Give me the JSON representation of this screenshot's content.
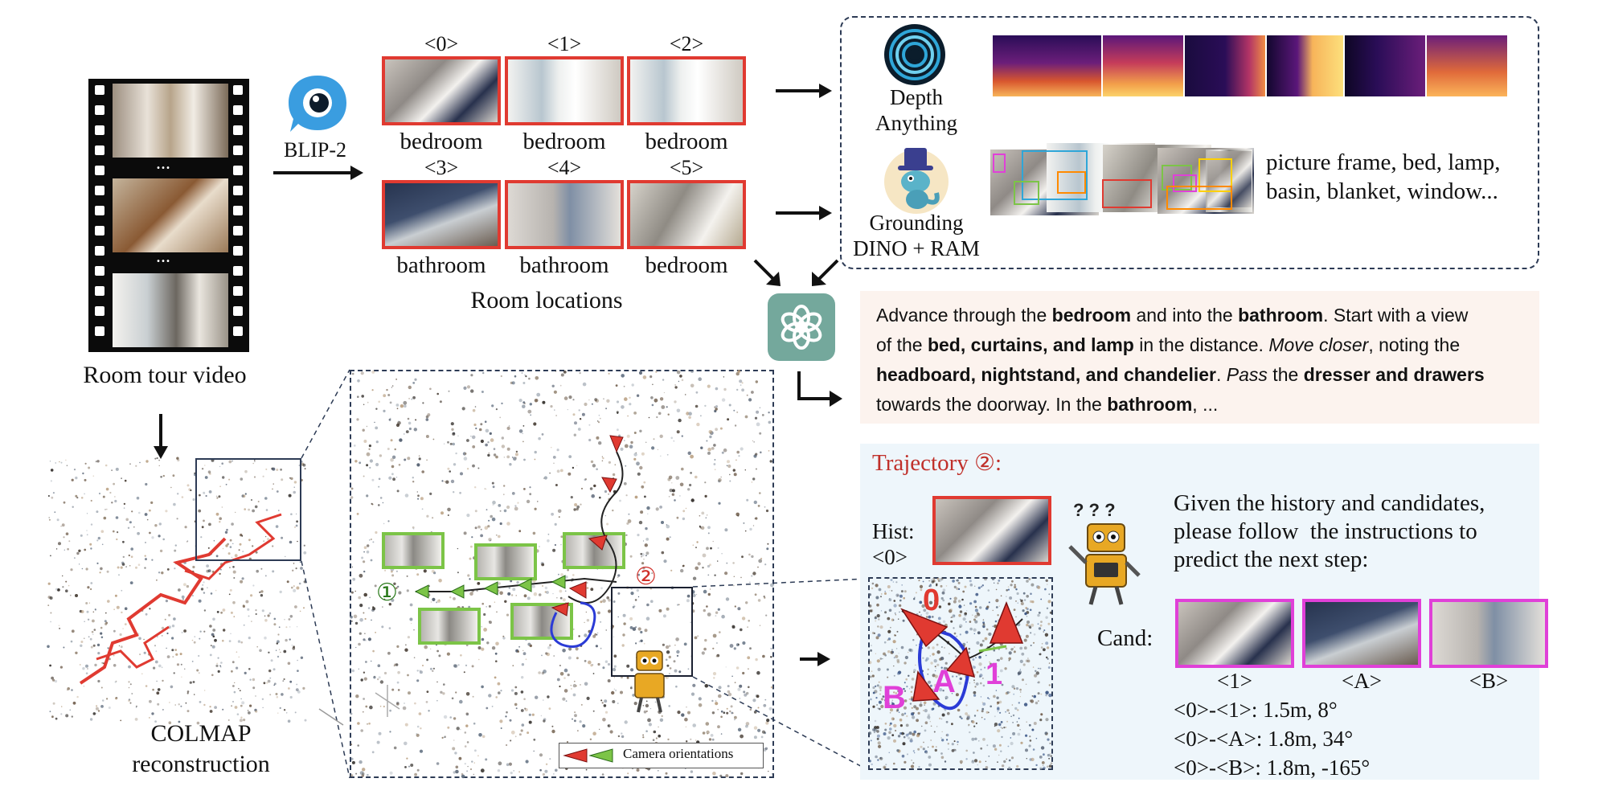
{
  "video": {
    "caption": "Room tour video",
    "ellipsis1": "...",
    "ellipsis2": "..."
  },
  "blip": {
    "label": "BLIP-2",
    "icon": "eye-speech-bubble-icon"
  },
  "rooms": {
    "caption": "Room locations",
    "items": [
      {
        "index": "<0>",
        "label": "bedroom"
      },
      {
        "index": "<1>",
        "label": "bedroom"
      },
      {
        "index": "<2>",
        "label": "bedroom"
      },
      {
        "index": "<3>",
        "label": "bathroom"
      },
      {
        "index": "<4>",
        "label": "bathroom"
      },
      {
        "index": "<5>",
        "label": "bedroom"
      }
    ]
  },
  "depth": {
    "name_line1": "Depth",
    "name_line2": "Anything",
    "icon": "spiral-eye-icon"
  },
  "grounding": {
    "name_line1": "Grounding",
    "name_line2": "DINO + RAM",
    "icon": "dino-mascot-icon",
    "tags_line1": "picture frame, bed, lamp,",
    "tags_line2": "basin, blanket, window..."
  },
  "gpt": {
    "icon": "openai-knot-icon"
  },
  "instruction": {
    "line1": [
      {
        "t": "Advance through the ",
        "s": ""
      },
      {
        "t": "bedroom",
        "s": "b"
      },
      {
        "t": " and into the ",
        "s": ""
      },
      {
        "t": "bathroom",
        "s": "b"
      },
      {
        "t": ". Start with a view",
        "s": ""
      }
    ],
    "line2": [
      {
        "t": "of the ",
        "s": ""
      },
      {
        "t": "bed, curtains, and lamp",
        "s": "b"
      },
      {
        "t": " in the distance. ",
        "s": ""
      },
      {
        "t": "Move closer",
        "s": "i"
      },
      {
        "t": ", noting the",
        "s": ""
      }
    ],
    "line3": [
      {
        "t": "headboard, nightstand, and chandelier",
        "s": "b"
      },
      {
        "t": ". ",
        "s": ""
      },
      {
        "t": "Pass",
        "s": "i"
      },
      {
        "t": " the ",
        "s": ""
      },
      {
        "t": "dresser and drawers",
        "s": "b"
      }
    ],
    "line4": [
      {
        "t": "towards the doorway. In the ",
        "s": ""
      },
      {
        "t": "bathroom",
        "s": "b"
      },
      {
        "t": ", ...",
        "s": ""
      }
    ]
  },
  "colmap": {
    "caption_line1": "COLMAP",
    "caption_line2": "reconstruction"
  },
  "pointcloud": {
    "traj1": "①",
    "traj2": "②",
    "legend": "Camera orientations"
  },
  "zoom": {
    "label0": "0",
    "label1": "1",
    "labelA": "A",
    "labelB": "B"
  },
  "trajectory": {
    "title": "Trajectory ②:",
    "hist_line1": "Hist:",
    "hist_line2": "<0>",
    "prompt_line1": "Given the history and candidates,",
    "prompt_line2": "please follow  the instructions to",
    "prompt_line3": "predict the next step:",
    "cand_label": "Cand:",
    "candidates": [
      {
        "label": "<1>"
      },
      {
        "label": "<A>"
      },
      {
        "label": "<B>"
      }
    ],
    "distances": [
      "<0>-<1>: 1.5m, 8°",
      "<0>-<A>: 1.8m, 34°",
      "<0>-<B>: 1.8m, -165°"
    ]
  },
  "colors": {
    "accent_red": "#e03a31",
    "green": "#7cc447",
    "magenta": "#e040d8",
    "gpt_teal": "#74a89c",
    "blue_traj": "#2b3bd6"
  }
}
